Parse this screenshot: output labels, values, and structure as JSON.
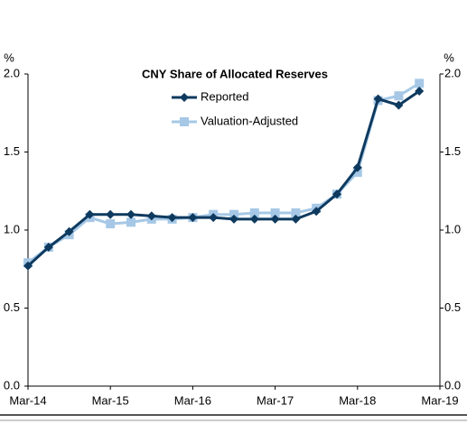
{
  "chart_data": {
    "type": "line",
    "title": "CNY Share of Allocated Reserves",
    "ylabel": "%",
    "y2label": "%",
    "x": [
      "Mar-14",
      "Jun-14",
      "Sep-14",
      "Dec-14",
      "Mar-15",
      "Jun-15",
      "Sep-15",
      "Dec-15",
      "Mar-16",
      "Jun-16",
      "Sep-16",
      "Dec-16",
      "Mar-17",
      "Jun-17",
      "Sep-17",
      "Dec-17",
      "Mar-18",
      "Jun-18",
      "Sep-18",
      "Dec-18"
    ],
    "series": [
      {
        "name": "Reported",
        "color": "#0f3a5f",
        "marker": "diamond",
        "values": [
          0.77,
          0.89,
          0.99,
          1.1,
          1.1,
          1.1,
          1.09,
          1.08,
          1.08,
          1.08,
          1.07,
          1.07,
          1.07,
          1.07,
          1.12,
          1.23,
          1.4,
          1.84,
          1.8,
          1.89
        ]
      },
      {
        "name": "Valuation-Adjusted",
        "color": "#a6c8e6",
        "marker": "square",
        "values": [
          0.79,
          0.89,
          0.97,
          1.08,
          1.04,
          1.05,
          1.07,
          1.07,
          1.08,
          1.1,
          1.1,
          1.11,
          1.11,
          1.11,
          1.14,
          1.23,
          1.37,
          1.83,
          1.86,
          1.94
        ]
      }
    ],
    "xlim": [
      "Mar-14",
      "Mar-19"
    ],
    "xticks": [
      "Mar-14",
      "Mar-15",
      "Mar-16",
      "Mar-17",
      "Mar-18",
      "Mar-19"
    ],
    "ylim": [
      0,
      2
    ],
    "yticks": [
      {
        "value": 0,
        "label": "0.0"
      },
      {
        "value": 0.5,
        "label": "0.5"
      },
      {
        "value": 1,
        "label": "1.0"
      },
      {
        "value": 1.5,
        "label": "1.5"
      },
      {
        "value": 2,
        "label": "2.0"
      }
    ],
    "y2lim": [
      0,
      2
    ],
    "y2ticks": [
      {
        "value": 0,
        "label": "0.0"
      },
      {
        "value": 0.5,
        "label": "0.5"
      },
      {
        "value": 1,
        "label": "1.0"
      },
      {
        "value": 1.5,
        "label": "1.5"
      },
      {
        "value": 2,
        "label": "2.0"
      }
    ]
  }
}
